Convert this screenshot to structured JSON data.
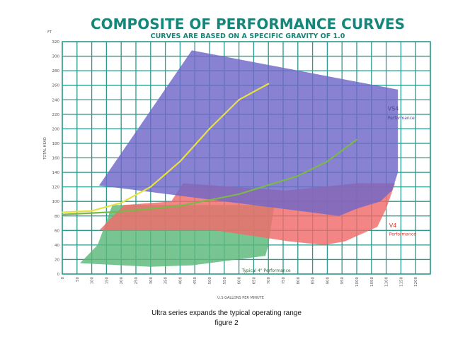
{
  "chart_data": {
    "type": "area",
    "title": "COMPOSITE OF PERFORMANCE CURVES",
    "subtitle": "CURVES ARE BASED ON A SPECIFIC GRAVITY OF 1.0",
    "ylabel": "TOTAL HEAD",
    "yunit": "FT",
    "xlabel": "U.S.GALLONS PER MINUTE",
    "xlim": [
      0,
      1250
    ],
    "ylim": [
      0,
      320
    ],
    "xticks": [
      0,
      50,
      100,
      150,
      200,
      250,
      300,
      350,
      400,
      450,
      500,
      550,
      600,
      650,
      700,
      750,
      800,
      850,
      900,
      950,
      1000,
      1050,
      1100,
      1150,
      1200
    ],
    "yticks": [
      0,
      20,
      40,
      60,
      80,
      100,
      120,
      140,
      160,
      180,
      200,
      220,
      240,
      260,
      280,
      300,
      320
    ],
    "grid": true,
    "regions": [
      {
        "label": "Typical 4\" Performance",
        "color": "#5bb87a",
        "points": [
          [
            60,
            15
          ],
          [
            120,
            40
          ],
          [
            170,
            95
          ],
          [
            720,
            95
          ],
          [
            700,
            40
          ],
          [
            690,
            25
          ],
          [
            440,
            12
          ],
          [
            300,
            10
          ]
        ]
      },
      {
        "label": "V4",
        "sublabel": "Performance",
        "color": "#f06a6a",
        "points": [
          [
            125,
            60
          ],
          [
            210,
            95
          ],
          [
            370,
            100
          ],
          [
            410,
            125
          ],
          [
            760,
            115
          ],
          [
            1000,
            125
          ],
          [
            1130,
            125
          ],
          [
            1100,
            90
          ],
          [
            1070,
            65
          ],
          [
            960,
            45
          ],
          [
            890,
            40
          ],
          [
            770,
            45
          ],
          [
            520,
            60
          ]
        ]
      },
      {
        "label": "VS4",
        "sublabel": "Performance",
        "color": "#6f66c8",
        "points": [
          [
            125,
            122
          ],
          [
            440,
            308
          ],
          [
            1140,
            254
          ],
          [
            1140,
            140
          ],
          [
            1120,
            115
          ],
          [
            1080,
            100
          ],
          [
            1000,
            90
          ],
          [
            940,
            80
          ]
        ]
      }
    ],
    "series": [
      {
        "color": "#e8e040",
        "points": [
          [
            0,
            85
          ],
          [
            100,
            87
          ],
          [
            200,
            98
          ],
          [
            300,
            120
          ],
          [
            400,
            155
          ],
          [
            500,
            200
          ],
          [
            600,
            240
          ],
          [
            700,
            262
          ]
        ]
      },
      {
        "color": "#7ab84a",
        "points": [
          [
            0,
            82
          ],
          [
            200,
            86
          ],
          [
            400,
            94
          ],
          [
            600,
            110
          ],
          [
            800,
            135
          ],
          [
            900,
            155
          ],
          [
            1000,
            185
          ]
        ]
      }
    ]
  },
  "caption": {
    "line1": "Ultra series expands the typical operating range",
    "line2": "figure 2"
  }
}
